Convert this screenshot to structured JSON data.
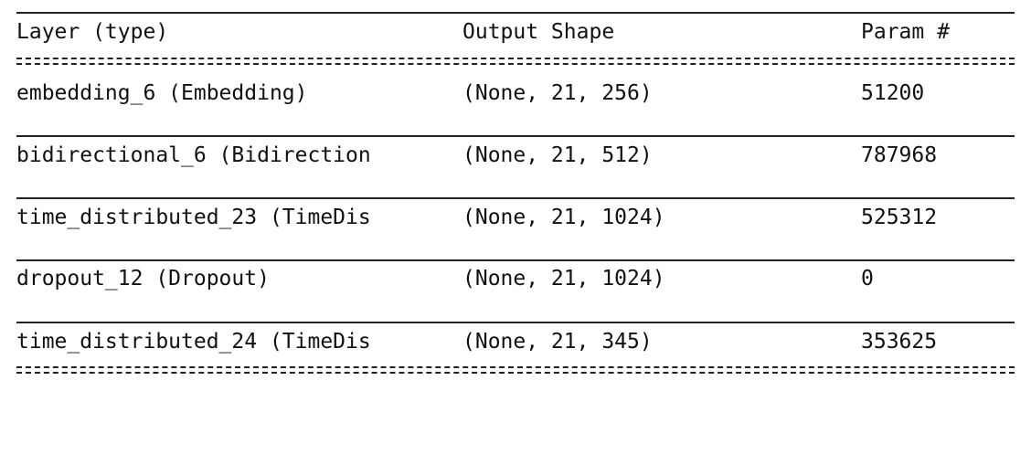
{
  "header": {
    "col_layer": "Layer (type)",
    "col_output": "Output Shape",
    "col_param": "Param #"
  },
  "rows": [
    {
      "layer": "embedding_6 (Embedding)",
      "output": "(None, 21, 256)",
      "params": "51200"
    },
    {
      "layer": "bidirectional_6 (Bidirection",
      "output": "(None, 21, 512)",
      "params": "787968"
    },
    {
      "layer": "time_distributed_23 (TimeDis",
      "output": "(None, 21, 1024)",
      "params": "525312"
    },
    {
      "layer": "dropout_12 (Dropout)",
      "output": "(None, 21, 1024)",
      "params": "0"
    },
    {
      "layer": "time_distributed_24 (TimeDis",
      "output": "(None, 21, 345)",
      "params": "353625"
    }
  ]
}
